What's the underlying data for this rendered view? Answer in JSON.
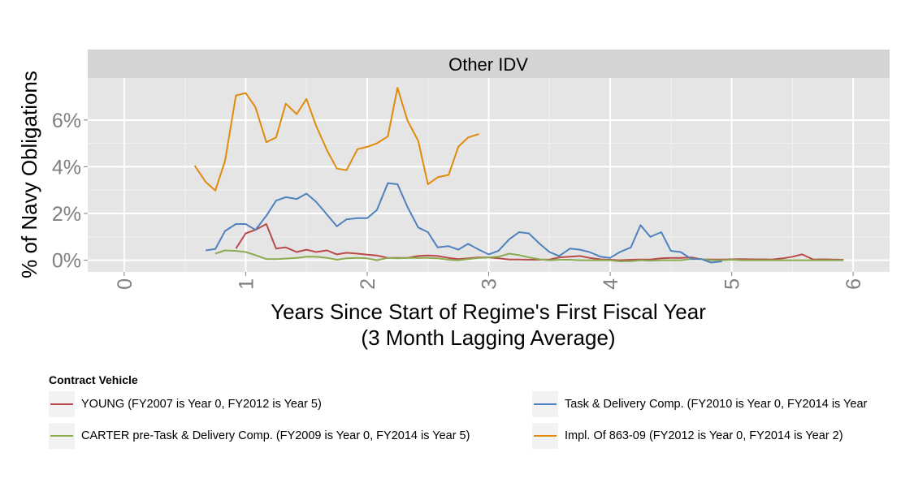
{
  "chart_data": {
    "type": "line",
    "panel_title": "Other IDV",
    "xlabel_line1": "Years Since Start of Regime's First Fiscal Year",
    "xlabel_line2": "(3 Month Lagging Average)",
    "ylabel": "% of Navy Obligations",
    "xlim": [
      -0.3,
      6.3
    ],
    "ylim": [
      -0.5,
      7.8
    ],
    "x_ticks": [
      "0",
      "1",
      "2",
      "3",
      "4",
      "5",
      "6"
    ],
    "x_tick_values": [
      0,
      1,
      2,
      3,
      4,
      5,
      6
    ],
    "y_ticks": [
      "0%",
      "2%",
      "4%",
      "6%"
    ],
    "y_tick_values": [
      0,
      2,
      4,
      6
    ],
    "grid": true,
    "legend_title": "Contract Vehicle",
    "legend_position": "bottom",
    "series": [
      {
        "name": "YOUNG (FY2007 is Year 0, FY2012 is Year 5)",
        "color": "#b94a48",
        "x": [
          0.92,
          1.0,
          1.08,
          1.17,
          1.25,
          1.33,
          1.42,
          1.5,
          1.58,
          1.67,
          1.75,
          1.83,
          1.92,
          2.0,
          2.08,
          2.17,
          2.25,
          2.33,
          2.42,
          2.5,
          2.58,
          2.67,
          2.75,
          2.83,
          2.92,
          3.0,
          3.08,
          3.17,
          3.25,
          3.33,
          3.42,
          3.5,
          3.58,
          3.67,
          3.75,
          3.83,
          3.92,
          4.0,
          4.08,
          4.17,
          4.25,
          4.33,
          4.42,
          4.5,
          4.58,
          4.67,
          4.75,
          4.83,
          4.92,
          5.0,
          5.08,
          5.17,
          5.25,
          5.33,
          5.42,
          5.5,
          5.58,
          5.67,
          5.75,
          5.83,
          5.92
        ],
        "values": [
          0.5,
          1.15,
          1.3,
          1.55,
          0.5,
          0.55,
          0.35,
          0.45,
          0.35,
          0.42,
          0.25,
          0.32,
          0.28,
          0.24,
          0.2,
          0.1,
          0.1,
          0.1,
          0.18,
          0.2,
          0.18,
          0.1,
          0.05,
          0.08,
          0.12,
          0.12,
          0.08,
          0.03,
          0.03,
          0.02,
          0.02,
          0.03,
          0.12,
          0.15,
          0.18,
          0.1,
          0.04,
          0.02,
          0.0,
          0.02,
          0.03,
          0.03,
          0.08,
          0.1,
          0.1,
          0.12,
          0.04,
          0.03,
          0.03,
          0.04,
          0.05,
          0.04,
          0.04,
          0.03,
          0.08,
          0.15,
          0.25,
          0.03,
          0.04,
          0.03,
          0.02
        ]
      },
      {
        "name": "CARTER pre-Task & Delivery Comp. (FY2009 is Year 0, FY2014 is Year 5)",
        "color": "#8aab4f",
        "x": [
          0.75,
          0.83,
          0.92,
          1.0,
          1.08,
          1.17,
          1.25,
          1.33,
          1.42,
          1.5,
          1.58,
          1.67,
          1.75,
          1.83,
          1.92,
          2.0,
          2.08,
          2.17,
          2.25,
          2.33,
          2.42,
          2.5,
          2.58,
          2.67,
          2.75,
          2.83,
          2.92,
          3.0,
          3.08,
          3.17,
          3.25,
          3.33,
          3.42,
          3.5,
          3.58,
          3.67,
          3.75,
          3.83,
          3.92,
          4.0,
          4.08,
          4.17,
          4.25,
          4.33,
          4.42,
          4.5,
          4.58,
          4.67,
          4.75,
          4.83,
          4.92,
          5.0,
          5.08,
          5.17,
          5.25,
          5.33,
          5.42,
          5.5,
          5.58,
          5.67,
          5.75,
          5.83,
          5.92
        ],
        "values": [
          0.28,
          0.42,
          0.4,
          0.35,
          0.22,
          0.05,
          0.05,
          0.07,
          0.1,
          0.15,
          0.15,
          0.1,
          0.02,
          0.08,
          0.1,
          0.08,
          0.0,
          0.1,
          0.08,
          0.1,
          0.1,
          0.1,
          0.08,
          0.02,
          0.0,
          0.05,
          0.1,
          0.12,
          0.15,
          0.28,
          0.22,
          0.12,
          0.04,
          0.0,
          0.02,
          0.02,
          0.0,
          0.0,
          0.0,
          0.0,
          -0.05,
          -0.04,
          0.0,
          -0.02,
          0.0,
          0.0,
          0.0,
          0.05,
          0.05,
          0.0,
          0.0,
          0.02,
          0.0,
          0.0,
          0.0,
          0.0,
          0.0,
          0.0,
          0.0,
          0.0,
          0.0,
          0.0,
          0.0
        ]
      },
      {
        "name": "Task & Delivery Comp. (FY2010 is Year 0, FY2014 is Year",
        "color": "#4f81bd",
        "x": [
          0.67,
          0.75,
          0.83,
          0.92,
          1.0,
          1.08,
          1.17,
          1.25,
          1.33,
          1.42,
          1.5,
          1.58,
          1.67,
          1.75,
          1.83,
          1.92,
          2.0,
          2.08,
          2.17,
          2.25,
          2.33,
          2.42,
          2.5,
          2.58,
          2.67,
          2.75,
          2.83,
          2.92,
          3.0,
          3.08,
          3.17,
          3.25,
          3.33,
          3.42,
          3.5,
          3.58,
          3.67,
          3.75,
          3.83,
          3.92,
          4.0,
          4.08,
          4.17,
          4.25,
          4.33,
          4.42,
          4.5,
          4.58,
          4.67,
          4.75,
          4.83,
          4.92
        ],
        "values": [
          0.42,
          0.48,
          1.25,
          1.55,
          1.55,
          1.3,
          1.9,
          2.55,
          2.7,
          2.62,
          2.85,
          2.5,
          1.95,
          1.45,
          1.75,
          1.8,
          1.8,
          2.15,
          3.3,
          3.25,
          2.3,
          1.4,
          1.2,
          0.55,
          0.6,
          0.45,
          0.7,
          0.45,
          0.25,
          0.4,
          0.9,
          1.2,
          1.15,
          0.7,
          0.35,
          0.18,
          0.5,
          0.45,
          0.35,
          0.15,
          0.1,
          0.35,
          0.55,
          1.5,
          1.0,
          1.2,
          0.4,
          0.35,
          0.05,
          0.05,
          -0.1,
          -0.05
        ]
      },
      {
        "name": "Impl. Of 863-09 (FY2012 is Year 0, FY2014 is Year 2)",
        "color": "#e08a0e",
        "x": [
          0.58,
          0.67,
          0.75,
          0.83,
          0.92,
          1.0,
          1.08,
          1.17,
          1.25,
          1.33,
          1.42,
          1.5,
          1.58,
          1.67,
          1.75,
          1.83,
          1.92,
          2.0,
          2.08,
          2.17,
          2.25,
          2.33,
          2.42,
          2.5,
          2.58,
          2.67,
          2.75,
          2.83,
          2.92
        ],
        "values": [
          4.05,
          3.35,
          2.98,
          4.25,
          7.05,
          7.15,
          6.55,
          5.05,
          5.25,
          6.7,
          6.25,
          6.9,
          5.75,
          4.7,
          3.92,
          3.85,
          4.75,
          4.85,
          5.0,
          5.3,
          7.38,
          6.0,
          5.1,
          3.25,
          3.55,
          3.65,
          4.85,
          5.25,
          5.4
        ]
      }
    ]
  }
}
